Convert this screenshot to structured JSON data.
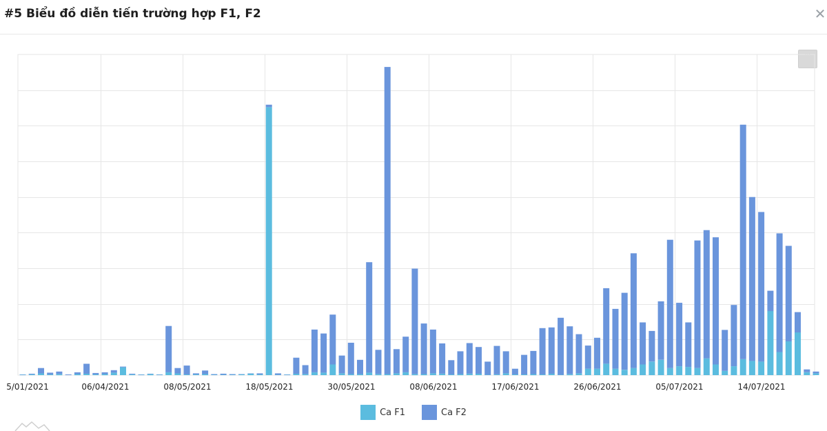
{
  "header": {
    "title": "#5 Biểu đồ diễn tiến trường hợp F1, F2",
    "close_icon": "close-icon"
  },
  "menu": {
    "label": "···",
    "icon": "menu-icon"
  },
  "legend": [
    {
      "label": "Ca F1",
      "color": "#5bbcdf"
    },
    {
      "label": "Ca F2",
      "color": "#6a95dc"
    }
  ],
  "chart_data": {
    "type": "bar",
    "stacked": true,
    "y_axis_labels_visible": false,
    "grid": true,
    "legend_position": "bottom",
    "ylim": [
      0,
      900
    ],
    "xtick_labels": [
      "5/01/2021",
      "06/04/2021",
      "08/05/2021",
      "18/05/2021",
      "30/05/2021",
      "08/06/2021",
      "17/06/2021",
      "26/06/2021",
      "05/07/2021",
      "14/07/2021"
    ],
    "series": [
      {
        "name": "Ca F1",
        "color": "#5bbcdf",
        "values": [
          1,
          2,
          5,
          2,
          3,
          0,
          3,
          4,
          2,
          3,
          7,
          22,
          2,
          1,
          3,
          1,
          8,
          5,
          2,
          2,
          3,
          1,
          1,
          1,
          2,
          4,
          2,
          752,
          1,
          1,
          4,
          3,
          8,
          7,
          30,
          5,
          3,
          3,
          7,
          3,
          3,
          5,
          8,
          3,
          3,
          5,
          4,
          2,
          3,
          4,
          4,
          1,
          2,
          5,
          2,
          2,
          3,
          2,
          4,
          1,
          3,
          5,
          18,
          18,
          32,
          18,
          15,
          20,
          30,
          38,
          43,
          20,
          25,
          23,
          20,
          47,
          30,
          12,
          25,
          45,
          40,
          38,
          180,
          65,
          95,
          120,
          8,
          5
        ]
      },
      {
        "name": "Ca F2",
        "color": "#6a95dc",
        "values": [
          1,
          2,
          15,
          5,
          7,
          2,
          5,
          28,
          4,
          5,
          7,
          2,
          2,
          1,
          1,
          1,
          130,
          15,
          25,
          3,
          10,
          2,
          3,
          2,
          1,
          1,
          3,
          7,
          4,
          1,
          45,
          25,
          120,
          110,
          140,
          50,
          88,
          40,
          310,
          68,
          862,
          68,
          100,
          296,
          142,
          123,
          85,
          40,
          64,
          86,
          75,
          37,
          80,
          62,
          16,
          55,
          65,
          130,
          130,
          160,
          134,
          110,
          65,
          87,
          212,
          168,
          216,
          322,
          118,
          86,
          164,
          360,
          178,
          125,
          358,
          360,
          357,
          115,
          172,
          658,
          460,
          420,
          57,
          333,
          268,
          57,
          8,
          5
        ]
      }
    ]
  }
}
